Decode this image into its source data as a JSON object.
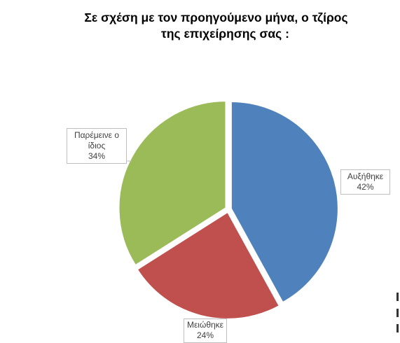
{
  "chart_data": {
    "type": "pie",
    "title_lines": [
      "Σε σχέση με τον προηγούμενο μήνα, ο τζίρος",
      "της επιχείρησης σας :"
    ],
    "slices": [
      {
        "label_lines": [
          "Αυξήθηκε"
        ],
        "value_label": "42%",
        "value": 42,
        "color": "#4f81bd"
      },
      {
        "label_lines": [
          "Μειώθηκε"
        ],
        "value_label": "24%",
        "value": 24,
        "color": "#c0504d"
      },
      {
        "label_lines": [
          "Παρέμεινε ο",
          "ίδιος"
        ],
        "value_label": "34%",
        "value": 34,
        "color": "#9bbb59"
      }
    ],
    "start_angle_deg": 0,
    "direction": "clockwise",
    "exploded": true,
    "legend": "none"
  }
}
